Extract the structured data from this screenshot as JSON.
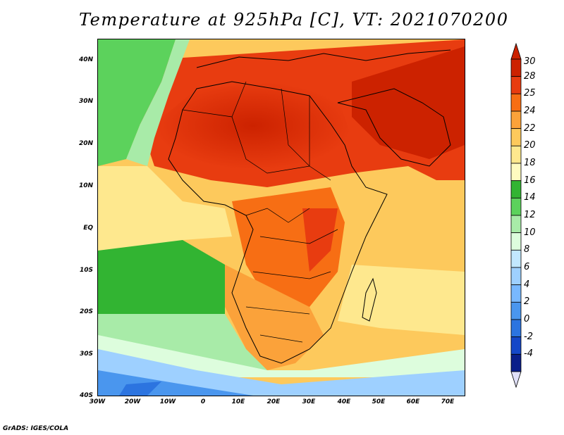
{
  "title": "Temperature at 925hPa [C], VT: 2021070200",
  "credit": "GrADS: IGES/COLA",
  "map": {
    "projection": "lat-lon",
    "lon_range": [
      -30,
      75
    ],
    "lat_range": [
      -40,
      45
    ],
    "y_ticks": [
      "40N",
      "30N",
      "20N",
      "10N",
      "EQ",
      "10S",
      "20S",
      "30S",
      "40S"
    ],
    "x_ticks": [
      "30W",
      "20W",
      "10W",
      "0",
      "10E",
      "20E",
      "30E",
      "40E",
      "50E",
      "60E",
      "70E"
    ]
  },
  "colorbar": {
    "labels": [
      "30",
      "28",
      "25",
      "24",
      "22",
      "20",
      "18",
      "16",
      "14",
      "12",
      "10",
      "8",
      "6",
      "4",
      "2",
      "0",
      "-2",
      "-4"
    ],
    "colors": [
      "#cc2200",
      "#e83c10",
      "#f76e14",
      "#fba23a",
      "#fdc95c",
      "#fee88e",
      "#fffbc0",
      "#32b432",
      "#5cd25c",
      "#a8eba8",
      "#ddfddd",
      "#c2e8ff",
      "#9ed0ff",
      "#78b8ff",
      "#4a96ee",
      "#2c74e0",
      "#1547c8",
      "#0a1e8a"
    ],
    "arrow_top_color": "#cc2200",
    "arrow_bottom_color": "#e0e0f8"
  }
}
